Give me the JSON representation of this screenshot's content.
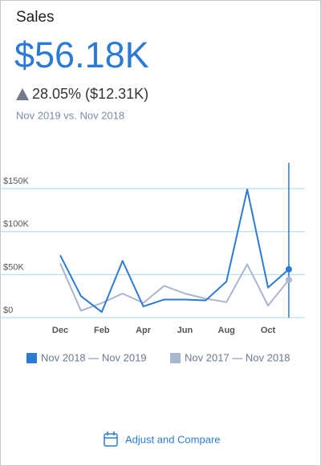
{
  "header": {
    "title": "Sales",
    "value": "$56.18K",
    "change": "28.05% ($12.31K)",
    "comparison": "Nov 2019 vs. Nov 2018"
  },
  "chart_data": {
    "type": "line",
    "categories": [
      "Dec",
      null,
      "Feb",
      null,
      "Apr",
      null,
      "Jun",
      null,
      "Aug",
      null,
      "Oct",
      null
    ],
    "series": [
      {
        "name": "Nov 2018 — Nov 2019",
        "color": "#2b7bd6",
        "values": [
          72600,
          25000,
          6500,
          66000,
          13000,
          21000,
          21000,
          20000,
          42000,
          149000,
          35000,
          56180
        ]
      },
      {
        "name": "Nov 2017 — Nov 2018",
        "color": "#a9b6d0",
        "values": [
          63000,
          8000,
          17000,
          28000,
          17000,
          37000,
          28000,
          22000,
          18000,
          62000,
          14000,
          43870
        ]
      }
    ],
    "ylim": [
      0,
      180000
    ],
    "yticks": [
      {
        "value": 0,
        "label": "$0"
      },
      {
        "value": 50000,
        "label": "$50K"
      },
      {
        "value": 100000,
        "label": "$100K"
      },
      {
        "value": 150000,
        "label": "$150K"
      }
    ],
    "grid": true
  },
  "footer": {
    "button": "Adjust and Compare"
  }
}
